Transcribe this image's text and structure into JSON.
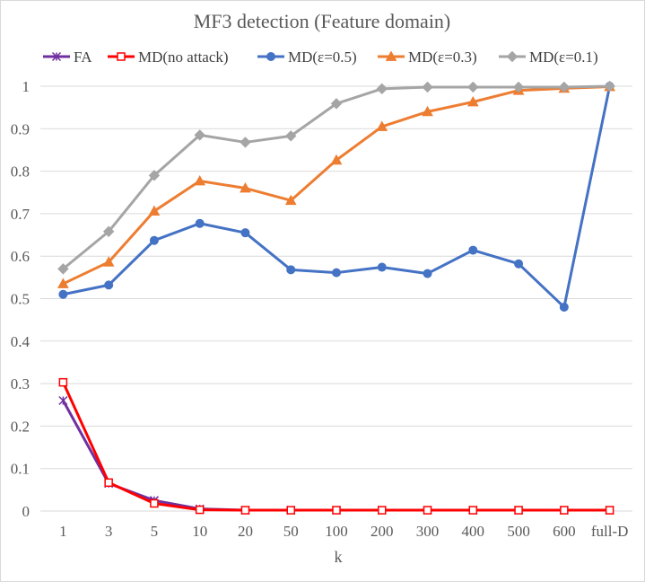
{
  "chart_data": {
    "type": "line",
    "title": "MF3 detection (Feature domain)",
    "xlabel": "k",
    "ylabel": "",
    "ylim": [
      0,
      1
    ],
    "yticks": [
      "0",
      "0.1",
      "0.2",
      "0.3",
      "0.4",
      "0.5",
      "0.6",
      "0.7",
      "0.8",
      "0.9",
      "1"
    ],
    "categories": [
      "1",
      "3",
      "5",
      "10",
      "20",
      "50",
      "100",
      "200",
      "300",
      "400",
      "500",
      "600",
      "full-D"
    ],
    "legend_position": "top",
    "series": [
      {
        "name": "FA",
        "color": "#7030a0",
        "marker": "star",
        "values": [
          0.26,
          0.065,
          0.025,
          0.005,
          0.002,
          0.002,
          0.002,
          0.002,
          0.002,
          0.002,
          0.002,
          0.002,
          0.002
        ]
      },
      {
        "name": "MD(no attack)",
        "color": "#ff0000",
        "marker": "open-square",
        "values": [
          0.303,
          0.067,
          0.018,
          0.003,
          0.002,
          0.002,
          0.002,
          0.002,
          0.002,
          0.002,
          0.002,
          0.002,
          0.002
        ]
      },
      {
        "name": "MD(ε=0.5)",
        "color": "#4472c4",
        "marker": "circle",
        "values": [
          0.51,
          0.532,
          0.637,
          0.677,
          0.655,
          0.568,
          0.561,
          0.574,
          0.559,
          0.614,
          0.582,
          0.48,
          1.0
        ]
      },
      {
        "name": "MD(ε=0.3)",
        "color": "#ed7d31",
        "marker": "triangle",
        "values": [
          0.535,
          0.586,
          0.706,
          0.777,
          0.76,
          0.731,
          0.826,
          0.905,
          0.94,
          0.963,
          0.99,
          0.995,
          0.999
        ]
      },
      {
        "name": "MD(ε=0.1)",
        "color": "#a5a5a5",
        "marker": "diamond",
        "values": [
          0.57,
          0.658,
          0.79,
          0.885,
          0.868,
          0.883,
          0.959,
          0.994,
          0.998,
          0.998,
          0.998,
          0.998,
          1.0
        ]
      }
    ]
  }
}
